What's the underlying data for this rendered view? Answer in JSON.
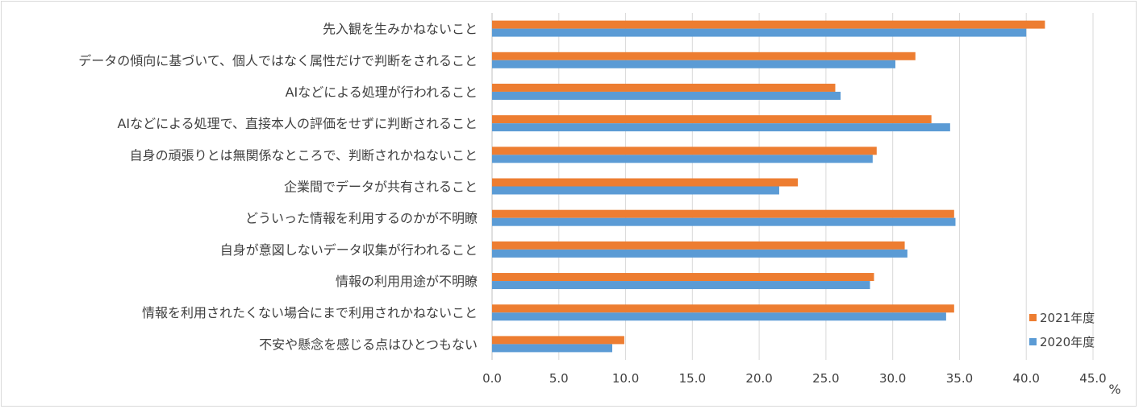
{
  "chart_data": {
    "type": "bar",
    "orientation": "horizontal",
    "categories": [
      "先入観を生みかねないこと",
      "データの傾向に基づいて、個人ではなく属性だけで判断をされること",
      "AIなどによる処理が行われること",
      "AIなどによる処理で、直接本人の評価をせずに判断されること",
      "自身の頑張りとは無関係なところで、判断されかねないこと",
      "企業間でデータが共有されること",
      "どういった情報を利用するのかが不明瞭",
      "自身が意図しないデータ収集が行われること",
      "情報の利用用途が不明瞭",
      "情報を利用されたくない場合にまで利用されかねないこと",
      "不安や懸念を感じる点はひとつもない"
    ],
    "series": [
      {
        "name": "2021年度",
        "color": "#ed7d31",
        "values": [
          41.4,
          31.7,
          25.7,
          32.9,
          28.8,
          22.9,
          34.6,
          30.9,
          28.6,
          34.6,
          9.9
        ]
      },
      {
        "name": "2020年度",
        "color": "#5b9bd5",
        "values": [
          40.0,
          30.2,
          26.1,
          34.3,
          28.5,
          21.5,
          34.7,
          31.1,
          28.3,
          34.0,
          9.0
        ]
      }
    ],
    "xlim": [
      0,
      45
    ],
    "xticks": [
      0,
      5,
      10,
      15,
      20,
      25,
      30,
      35,
      40,
      45
    ],
    "xtick_labels": [
      "0.0",
      "5.0",
      "10.0",
      "15.0",
      "20.0",
      "25.0",
      "30.0",
      "35.0",
      "40.0",
      "45.0"
    ],
    "unit_label": "%",
    "grid": true,
    "legend_position": "bottom-right"
  }
}
